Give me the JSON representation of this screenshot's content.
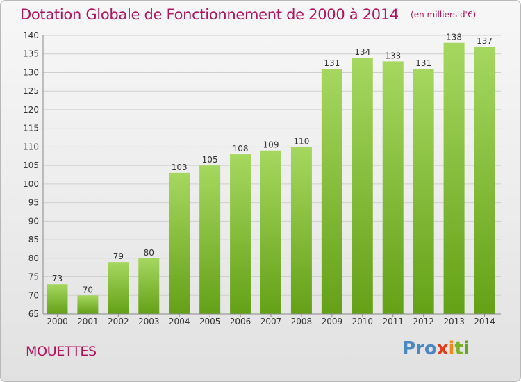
{
  "title": "Dotation Globale de Fonctionnement de 2000 à 2014",
  "unit_label": "(en milliers d'€)",
  "commune": "MOUETTES",
  "logo_text": "Proxiti",
  "logo_letters": [
    "P",
    "r",
    "o",
    "x",
    "i",
    "t",
    "i"
  ],
  "colors": {
    "title": "#b0145f",
    "bar_light": "#a6d760",
    "bar_dark": "#64a117",
    "grid": "#cfcfcf",
    "axis_text": "#333333"
  },
  "chart_data": {
    "type": "bar",
    "categories": [
      "2000",
      "2001",
      "2002",
      "2003",
      "2004",
      "2005",
      "2006",
      "2007",
      "2008",
      "2009",
      "2010",
      "2011",
      "2012",
      "2013",
      "2014"
    ],
    "values": [
      73,
      70,
      79,
      80,
      103,
      105,
      108,
      109,
      110,
      131,
      134,
      133,
      131,
      138,
      137
    ],
    "ylim": [
      65,
      140
    ],
    "yticks": [
      65,
      70,
      75,
      80,
      85,
      90,
      95,
      100,
      105,
      110,
      115,
      120,
      125,
      130,
      135,
      140
    ],
    "grid": true,
    "xlabel": "",
    "ylabel": ""
  }
}
